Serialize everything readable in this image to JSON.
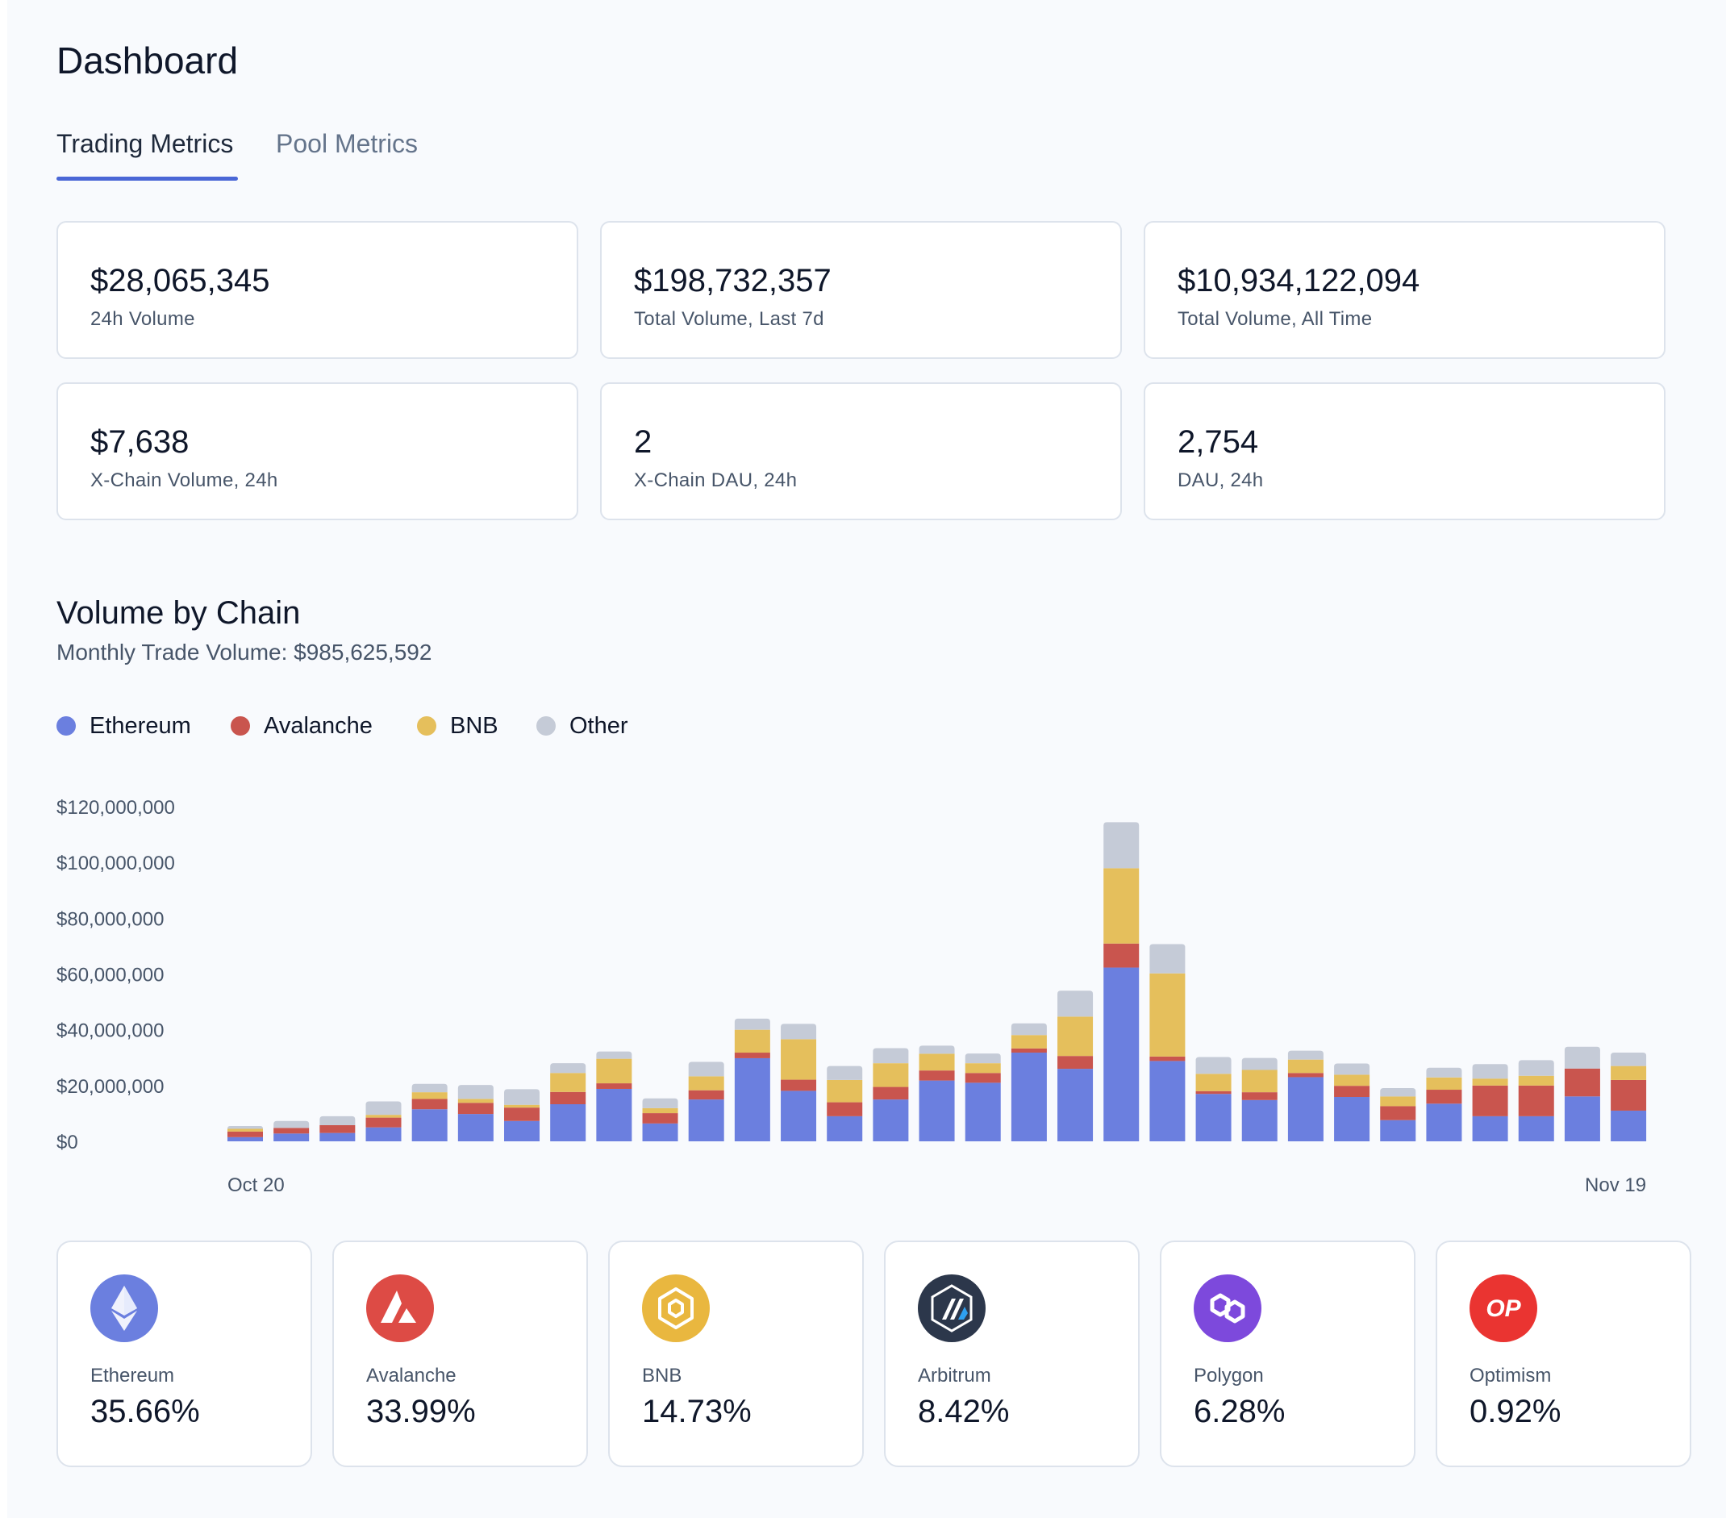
{
  "header": {
    "title": "Dashboard"
  },
  "tabs": [
    {
      "label": "Trading Metrics",
      "active": true
    },
    {
      "label": "Pool Metrics",
      "active": false
    }
  ],
  "accent_color": "#4a67d6",
  "stats": [
    {
      "value": "$28,065,345",
      "label": "24h Volume"
    },
    {
      "value": "$198,732,357",
      "label": "Total Volume, Last 7d"
    },
    {
      "value": "$10,934,122,094",
      "label": "Total Volume, All Time"
    },
    {
      "value": "$7,638",
      "label": "X-Chain Volume, 24h"
    },
    {
      "value": "2",
      "label": "X-Chain DAU, 24h"
    },
    {
      "value": "2,754",
      "label": "DAU, 24h"
    }
  ],
  "volume_section": {
    "title": "Volume by Chain",
    "subtitle": "Monthly Trade Volume: $985,625,592"
  },
  "legend": [
    {
      "name": "Ethereum",
      "color": "#6b7fdf"
    },
    {
      "name": "Avalanche",
      "color": "#c9554e"
    },
    {
      "name": "BNB",
      "color": "#e5bf5c"
    },
    {
      "name": "Other",
      "color": "#c5cbd7"
    }
  ],
  "chart_data": {
    "type": "bar",
    "stacked": true,
    "y_tick_labels": [
      "$0",
      "$20,000,000",
      "$40,000,000",
      "$60,000,000",
      "$80,000,000",
      "$100,000,000",
      "$120,000,000"
    ],
    "y_ticks": [
      0,
      20000000,
      40000000,
      60000000,
      80000000,
      100000000,
      120000000
    ],
    "ylim": [
      0,
      120000000
    ],
    "x_tick_labels": [
      "Oct 20",
      "Nov 19"
    ],
    "x_tick_index": [
      0,
      31
    ],
    "legend_position": "top-left",
    "grid": false,
    "series": [
      {
        "name": "Ethereum",
        "color": "#6b7fdf",
        "values": [
          1500000,
          2800000,
          3000000,
          5000000,
          11500000,
          9800000,
          7300000,
          13300000,
          18800000,
          6400000,
          15000000,
          29800000,
          18100000,
          9000000,
          15000000,
          21800000,
          21000000,
          31800000,
          26000000,
          62300000,
          28800000,
          17000000,
          14800000,
          23000000,
          15900000,
          7600000,
          13500000,
          9000000,
          9000000,
          16100000,
          11000000
        ]
      },
      {
        "name": "Avalanche",
        "color": "#c9554e",
        "values": [
          2000000,
          2000000,
          2800000,
          3500000,
          3700000,
          4000000,
          4800000,
          4400000,
          2000000,
          3700000,
          3300000,
          2000000,
          4000000,
          5000000,
          4500000,
          3600000,
          3500000,
          1500000,
          4600000,
          8600000,
          1600000,
          1000000,
          2800000,
          1500000,
          4000000,
          5000000,
          5000000,
          11000000,
          11000000,
          10000000,
          11000000
        ]
      },
      {
        "name": "BNB",
        "color": "#e5bf5c",
        "values": [
          1000000,
          0,
          0,
          1000000,
          2400000,
          1400000,
          1000000,
          6800000,
          8800000,
          1800000,
          5000000,
          8200000,
          14500000,
          8000000,
          8500000,
          6000000,
          3500000,
          4800000,
          14100000,
          27000000,
          29800000,
          6200000,
          8000000,
          4800000,
          4000000,
          3500000,
          4400000,
          2500000,
          3500000,
          0,
          5000000
        ]
      },
      {
        "name": "Other",
        "color": "#c5cbd7",
        "values": [
          1000000,
          2500000,
          3200000,
          4800000,
          3000000,
          5000000,
          5600000,
          3500000,
          2600000,
          3500000,
          5200000,
          4000000,
          5500000,
          5000000,
          5400000,
          2900000,
          3500000,
          4200000,
          9300000,
          16500000,
          10500000,
          6000000,
          4300000,
          3200000,
          4000000,
          3000000,
          3500000,
          5200000,
          5600000,
          7800000,
          4800000
        ]
      }
    ]
  },
  "chains": [
    {
      "name": "Ethereum",
      "pct": "35.66%",
      "icon": "ethereum-logo-icon",
      "color": "#6b7fdf"
    },
    {
      "name": "Avalanche",
      "pct": "33.99%",
      "icon": "avalanche-logo-icon",
      "color": "#dd4b45"
    },
    {
      "name": "BNB",
      "pct": "14.73%",
      "icon": "bnb-logo-icon",
      "color": "#e9b73f"
    },
    {
      "name": "Arbitrum",
      "pct": "8.42%",
      "icon": "arbitrum-logo-icon",
      "color": "#2c374b"
    },
    {
      "name": "Polygon",
      "pct": "6.28%",
      "icon": "polygon-logo-icon",
      "color": "#7d49dc"
    },
    {
      "name": "Optimism",
      "pct": "0.92%",
      "icon": "optimism-logo-icon",
      "color": "#ea3431",
      "mark_text": "OP"
    }
  ]
}
